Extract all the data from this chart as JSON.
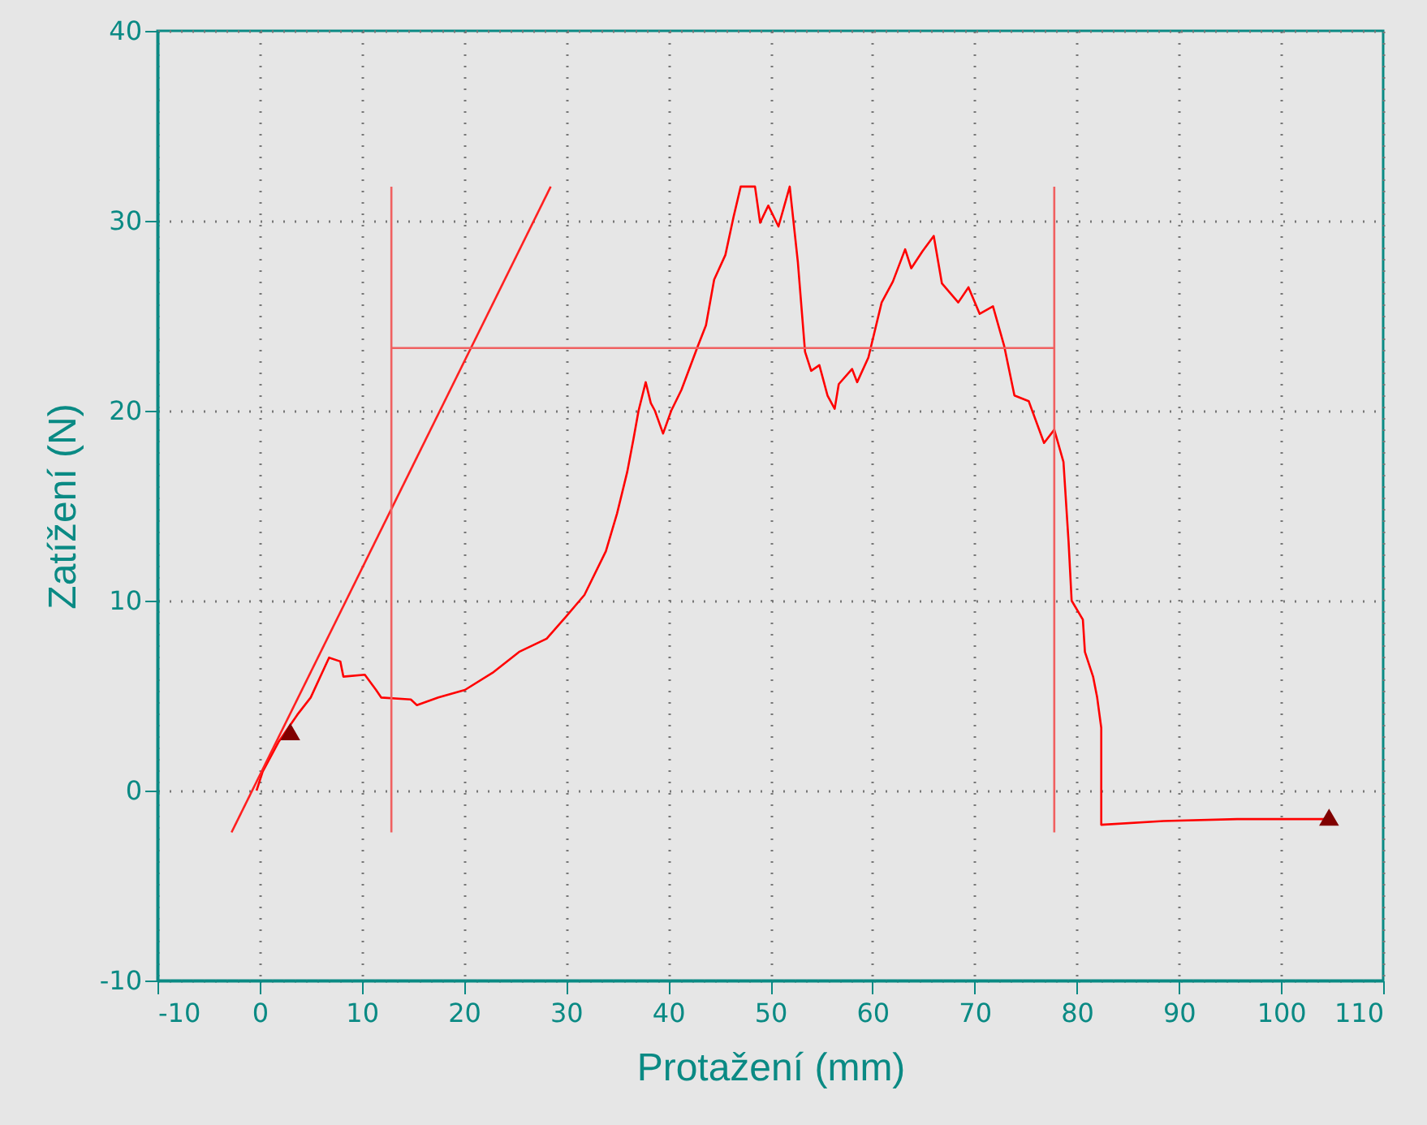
{
  "chart_data": {
    "type": "line",
    "xlabel": "Protažení (mm)",
    "ylabel": "Zatížení (N)",
    "xlim": [
      -10,
      110
    ],
    "xticks": [
      -10,
      0,
      10,
      20,
      30,
      40,
      50,
      60,
      70,
      80,
      90,
      100,
      110
    ],
    "ylim": [
      -10,
      40
    ],
    "yticks": [
      -10,
      0,
      10,
      20,
      30,
      40
    ],
    "grid": true,
    "line_style": "solid",
    "marker": "none",
    "series": [
      {
        "color": "#ff0000",
        "x": [
          -0.3,
          0.3,
          1.9,
          3.7,
          5.0,
          6.8,
          7.9,
          8.2,
          10.3,
          11.4,
          11.9,
          14.8,
          15.4,
          17.5,
          20.1,
          22.8,
          25.4,
          28.1,
          29.9,
          31.8,
          33.9,
          35.0,
          36.0,
          36.6,
          37.1,
          37.8,
          38.3,
          38.7,
          39.5,
          40.3,
          41.3,
          42.9,
          43.7,
          44.5,
          45.6,
          46.4,
          47.1,
          48.5,
          49.0,
          49.8,
          50.8,
          51.9,
          52.7,
          53.4,
          54.0,
          54.8,
          55.6,
          56.3,
          56.7,
          58.0,
          58.5,
          59.6,
          60.9,
          62.0,
          63.2,
          63.8,
          64.9,
          66.0,
          66.8,
          68.4,
          69.4,
          70.5,
          71.8,
          72.9,
          73.9,
          75.3,
          76.8,
          77.8,
          78.7,
          79.2,
          79.5,
          80.6,
          80.8,
          81.6,
          82.0,
          82.4,
          82.4,
          88.5,
          95.7,
          102.0,
          104.7
        ],
        "values": [
          0,
          1.0,
          2.6,
          4.0,
          4.9,
          7.0,
          6.8,
          6.0,
          6.1,
          5.3,
          4.9,
          4.8,
          4.5,
          4.9,
          5.3,
          6.2,
          7.3,
          8.0,
          9.1,
          10.3,
          12.6,
          14.6,
          16.8,
          18.5,
          20.0,
          21.5,
          20.4,
          20.0,
          18.8,
          20.0,
          21.1,
          23.4,
          24.5,
          26.9,
          28.2,
          30.2,
          31.8,
          31.8,
          29.9,
          30.8,
          29.7,
          31.8,
          27.8,
          23.1,
          22.1,
          22.4,
          20.8,
          20.1,
          21.4,
          22.2,
          21.5,
          22.8,
          25.7,
          26.8,
          28.5,
          27.5,
          28.4,
          29.2,
          26.7,
          25.7,
          26.5,
          25.1,
          25.5,
          23.4,
          20.8,
          20.5,
          18.3,
          19.0,
          17.3,
          13.1,
          10.0,
          9.0,
          7.3,
          6.0,
          4.9,
          3.3,
          -1.8,
          -1.6,
          -1.5,
          -1.5,
          -1.5
        ]
      },
      {
        "color": "#ff2020",
        "x": [
          -2.75,
          28.5
        ],
        "values": [
          -2.2,
          31.8
        ]
      },
      {
        "color": "#f06060",
        "x": [
          12.9,
          12.9
        ],
        "values": [
          -2.2,
          31.8
        ]
      },
      {
        "color": "#f06060",
        "x": [
          77.8,
          77.8
        ],
        "values": [
          -2.2,
          31.8
        ]
      },
      {
        "color": "#f06060",
        "x": [
          12.9,
          77.8
        ],
        "values": [
          23.3,
          23.3
        ]
      },
      {
        "type": "scatter",
        "marker": "triangle",
        "color": "#800000",
        "x": [
          3.0,
          104.7
        ],
        "values": [
          3.1,
          -1.4
        ]
      }
    ]
  }
}
